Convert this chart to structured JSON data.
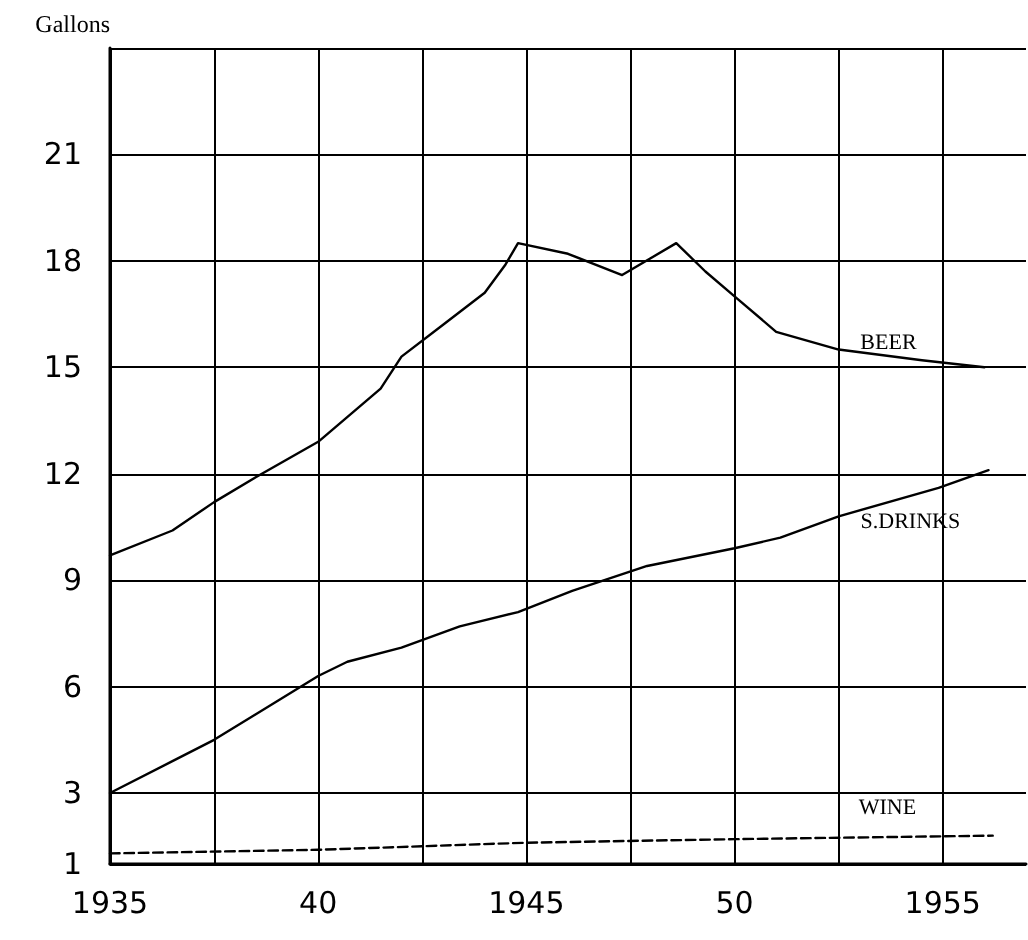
{
  "chart_data": {
    "type": "line",
    "ylabel": "Gallons",
    "xlim": [
      1935,
      1957
    ],
    "xticks": [
      1935,
      {
        "value": 1937.5,
        "label": null
      },
      {
        "value": 1940,
        "label": "40"
      },
      {
        "value": 1942.5,
        "label": null
      },
      1945,
      {
        "value": 1947.5,
        "label": null
      },
      {
        "value": 1950,
        "label": "50"
      },
      {
        "value": 1952.5,
        "label": null
      },
      1955
    ],
    "ylim": [
      1,
      24
    ],
    "yticks": [
      1,
      3,
      6,
      9,
      12,
      15,
      18,
      21,
      {
        "value": 24,
        "label": null
      }
    ],
    "grid": true,
    "legend": false,
    "marker": "none",
    "series": [
      {
        "name": "BEER",
        "color": "#000000",
        "line_style": "solid",
        "x": [
          1935,
          1936.5,
          1937.5,
          1938.5,
          1940,
          1941.5,
          1942,
          1943,
          1944,
          1944.5,
          1944.8,
          1946,
          1947.3,
          1948.6,
          1949.3,
          1950,
          1951,
          1952.5,
          1954.5,
          1956
        ],
        "values": [
          9.7,
          10.4,
          11.2,
          11.9,
          12.9,
          14.4,
          15.3,
          16.2,
          17.1,
          17.9,
          18.5,
          18.2,
          17.6,
          18.5,
          17.7,
          17,
          16,
          15.5,
          15.2,
          15
        ]
      },
      {
        "name": "S.DRINKS",
        "color": "#000000",
        "line_style": "solid",
        "x": [
          1935,
          1936.5,
          1937.5,
          1940,
          1940.7,
          1942,
          1943.4,
          1944.8,
          1946.1,
          1947.9,
          1950,
          1951.1,
          1952.5,
          1954.9,
          1956.1
        ],
        "values": [
          3,
          3.9,
          4.5,
          6.3,
          6.7,
          7.1,
          7.7,
          8.1,
          8.7,
          9.4,
          9.9,
          10.2,
          10.8,
          11.6,
          12.1
        ]
      },
      {
        "name": "WINE",
        "color": "#000000",
        "line_style": "dashed",
        "x": [
          1935,
          1940,
          1945,
          1950,
          1956.2
        ],
        "values": [
          1.3,
          1.4,
          1.6,
          1.7,
          1.8
        ]
      }
    ]
  }
}
